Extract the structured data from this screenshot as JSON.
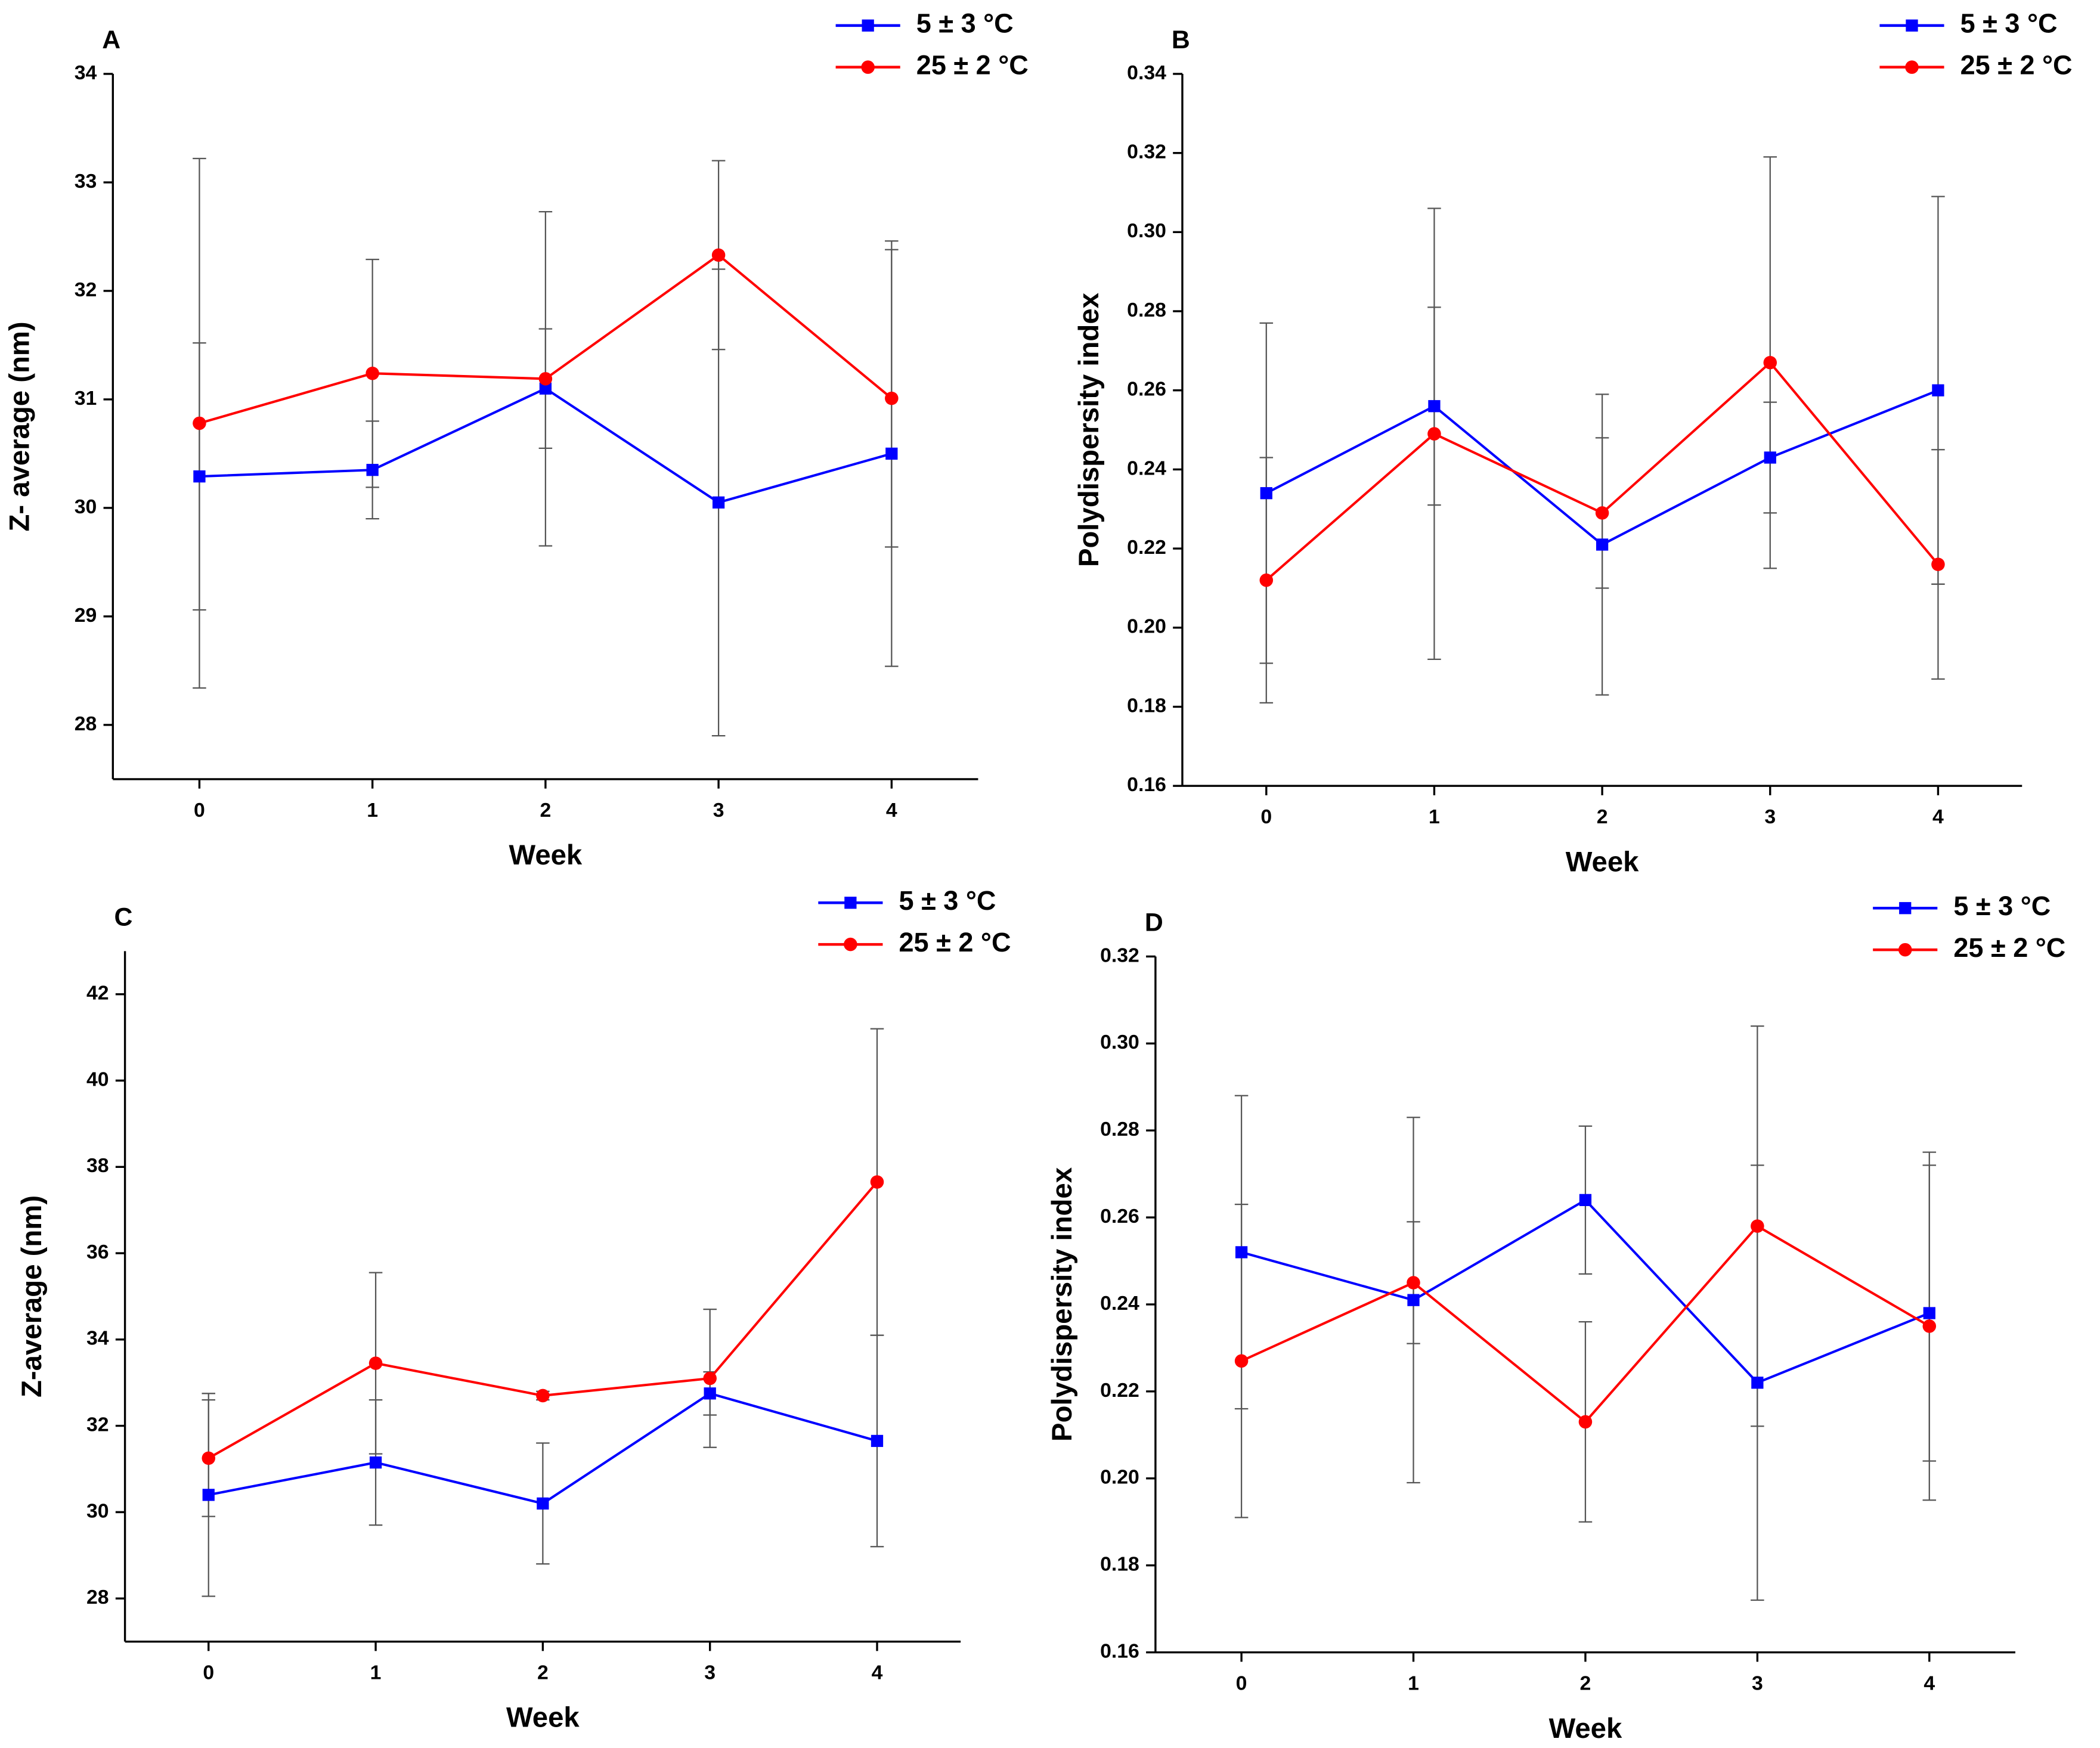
{
  "chart_data": [
    {
      "type": "line",
      "label": "A",
      "x_label": "Week",
      "y_label": "Z- average (nm)",
      "x": [
        0,
        1,
        2,
        3,
        4
      ],
      "xlim": [
        -0.5,
        4.5
      ],
      "xticks": [
        0,
        1,
        2,
        3,
        4
      ],
      "ylim": [
        27.5,
        34
      ],
      "yticks": [
        28,
        29,
        30,
        31,
        32,
        33,
        34
      ],
      "legend": "upper right",
      "series": [
        {
          "name": "5 ± 3 °C",
          "color": "#0000ff",
          "marker": "square",
          "values": [
            30.29,
            30.35,
            31.1,
            30.05,
            30.5
          ],
          "errors": [
            1.23,
            0.45,
            0.55,
            2.15,
            1.96
          ]
        },
        {
          "name": "25 ± 2 °C",
          "color": "#ff0000",
          "marker": "circle",
          "values": [
            30.78,
            31.24,
            31.19,
            32.33,
            31.01
          ],
          "errors": [
            2.44,
            1.05,
            1.54,
            0.87,
            1.37
          ]
        }
      ]
    },
    {
      "type": "line",
      "label": "B",
      "x_label": "Week",
      "y_label": "Polydispersity index",
      "x": [
        0,
        1,
        2,
        3,
        4
      ],
      "xlim": [
        -0.5,
        4.5
      ],
      "xticks": [
        0,
        1,
        2,
        3,
        4
      ],
      "ylim": [
        0.16,
        0.34
      ],
      "yticks": [
        0.16,
        0.18,
        {
          "value": 0.2,
          "label": "0.20"
        },
        0.22,
        0.24,
        0.26,
        0.28,
        {
          "value": 0.3,
          "label": "0.30"
        },
        0.32,
        0.34
      ],
      "legend": "upper right",
      "series": [
        {
          "name": "5 ± 3 °C",
          "color": "#0000ff",
          "marker": "square",
          "values": [
            0.234,
            0.256,
            0.221,
            0.243,
            0.26
          ],
          "errors": [
            0.043,
            0.025,
            0.038,
            0.014,
            0.049
          ]
        },
        {
          "name": "25 ± 2 °C",
          "color": "#ff0000",
          "marker": "circle",
          "values": [
            0.212,
            0.249,
            0.229,
            0.267,
            0.216
          ],
          "errors": [
            0.031,
            0.057,
            0.019,
            0.052,
            0.029
          ]
        }
      ]
    },
    {
      "type": "line",
      "label": "C",
      "x_label": "Week",
      "y_label": "Z-average (nm)",
      "x": [
        0,
        1,
        2,
        3,
        4
      ],
      "xlim": [
        -0.5,
        4.5
      ],
      "xticks": [
        0,
        1,
        2,
        3,
        4
      ],
      "ylim": [
        27,
        43
      ],
      "yticks": [
        28,
        30,
        32,
        34,
        36,
        38,
        40,
        42
      ],
      "legend": "upper right",
      "series": [
        {
          "name": "5 ± 3 °C",
          "color": "#0000ff",
          "marker": "square",
          "values": [
            30.4,
            31.15,
            30.2,
            32.75,
            31.65
          ],
          "errors": [
            2.35,
            1.45,
            1.4,
            0.5,
            2.45
          ]
        },
        {
          "name": "25 ± 2 °C",
          "color": "#ff0000",
          "marker": "circle",
          "values": [
            31.25,
            33.45,
            32.7,
            33.1,
            37.65
          ],
          "errors": [
            1.35,
            2.1,
            0.1,
            1.6,
            3.55
          ]
        }
      ]
    },
    {
      "type": "line",
      "label": "D",
      "x_label": "Week",
      "y_label": "Polydispersity index",
      "x": [
        0,
        1,
        2,
        3,
        4
      ],
      "xlim": [
        -0.5,
        4.5
      ],
      "xticks": [
        0,
        1,
        2,
        3,
        4
      ],
      "ylim": [
        0.16,
        0.32
      ],
      "yticks": [
        0.16,
        0.18,
        {
          "value": 0.2,
          "label": "0.20"
        },
        0.22,
        0.24,
        0.26,
        0.28,
        {
          "value": 0.3,
          "label": "0.30"
        },
        0.32
      ],
      "legend": "upper right",
      "series": [
        {
          "name": "5 ± 3 °C",
          "color": "#0000ff",
          "marker": "square",
          "values": [
            0.252,
            0.241,
            0.264,
            0.222,
            0.238
          ],
          "errors": [
            0.036,
            0.042,
            0.017,
            0.05,
            0.034
          ]
        },
        {
          "name": "25 ± 2 °C",
          "color": "#ff0000",
          "marker": "circle",
          "values": [
            0.227,
            0.245,
            0.213,
            0.258,
            0.235
          ],
          "errors": [
            0.036,
            0.014,
            0.023,
            0.046,
            0.04
          ]
        }
      ]
    }
  ]
}
